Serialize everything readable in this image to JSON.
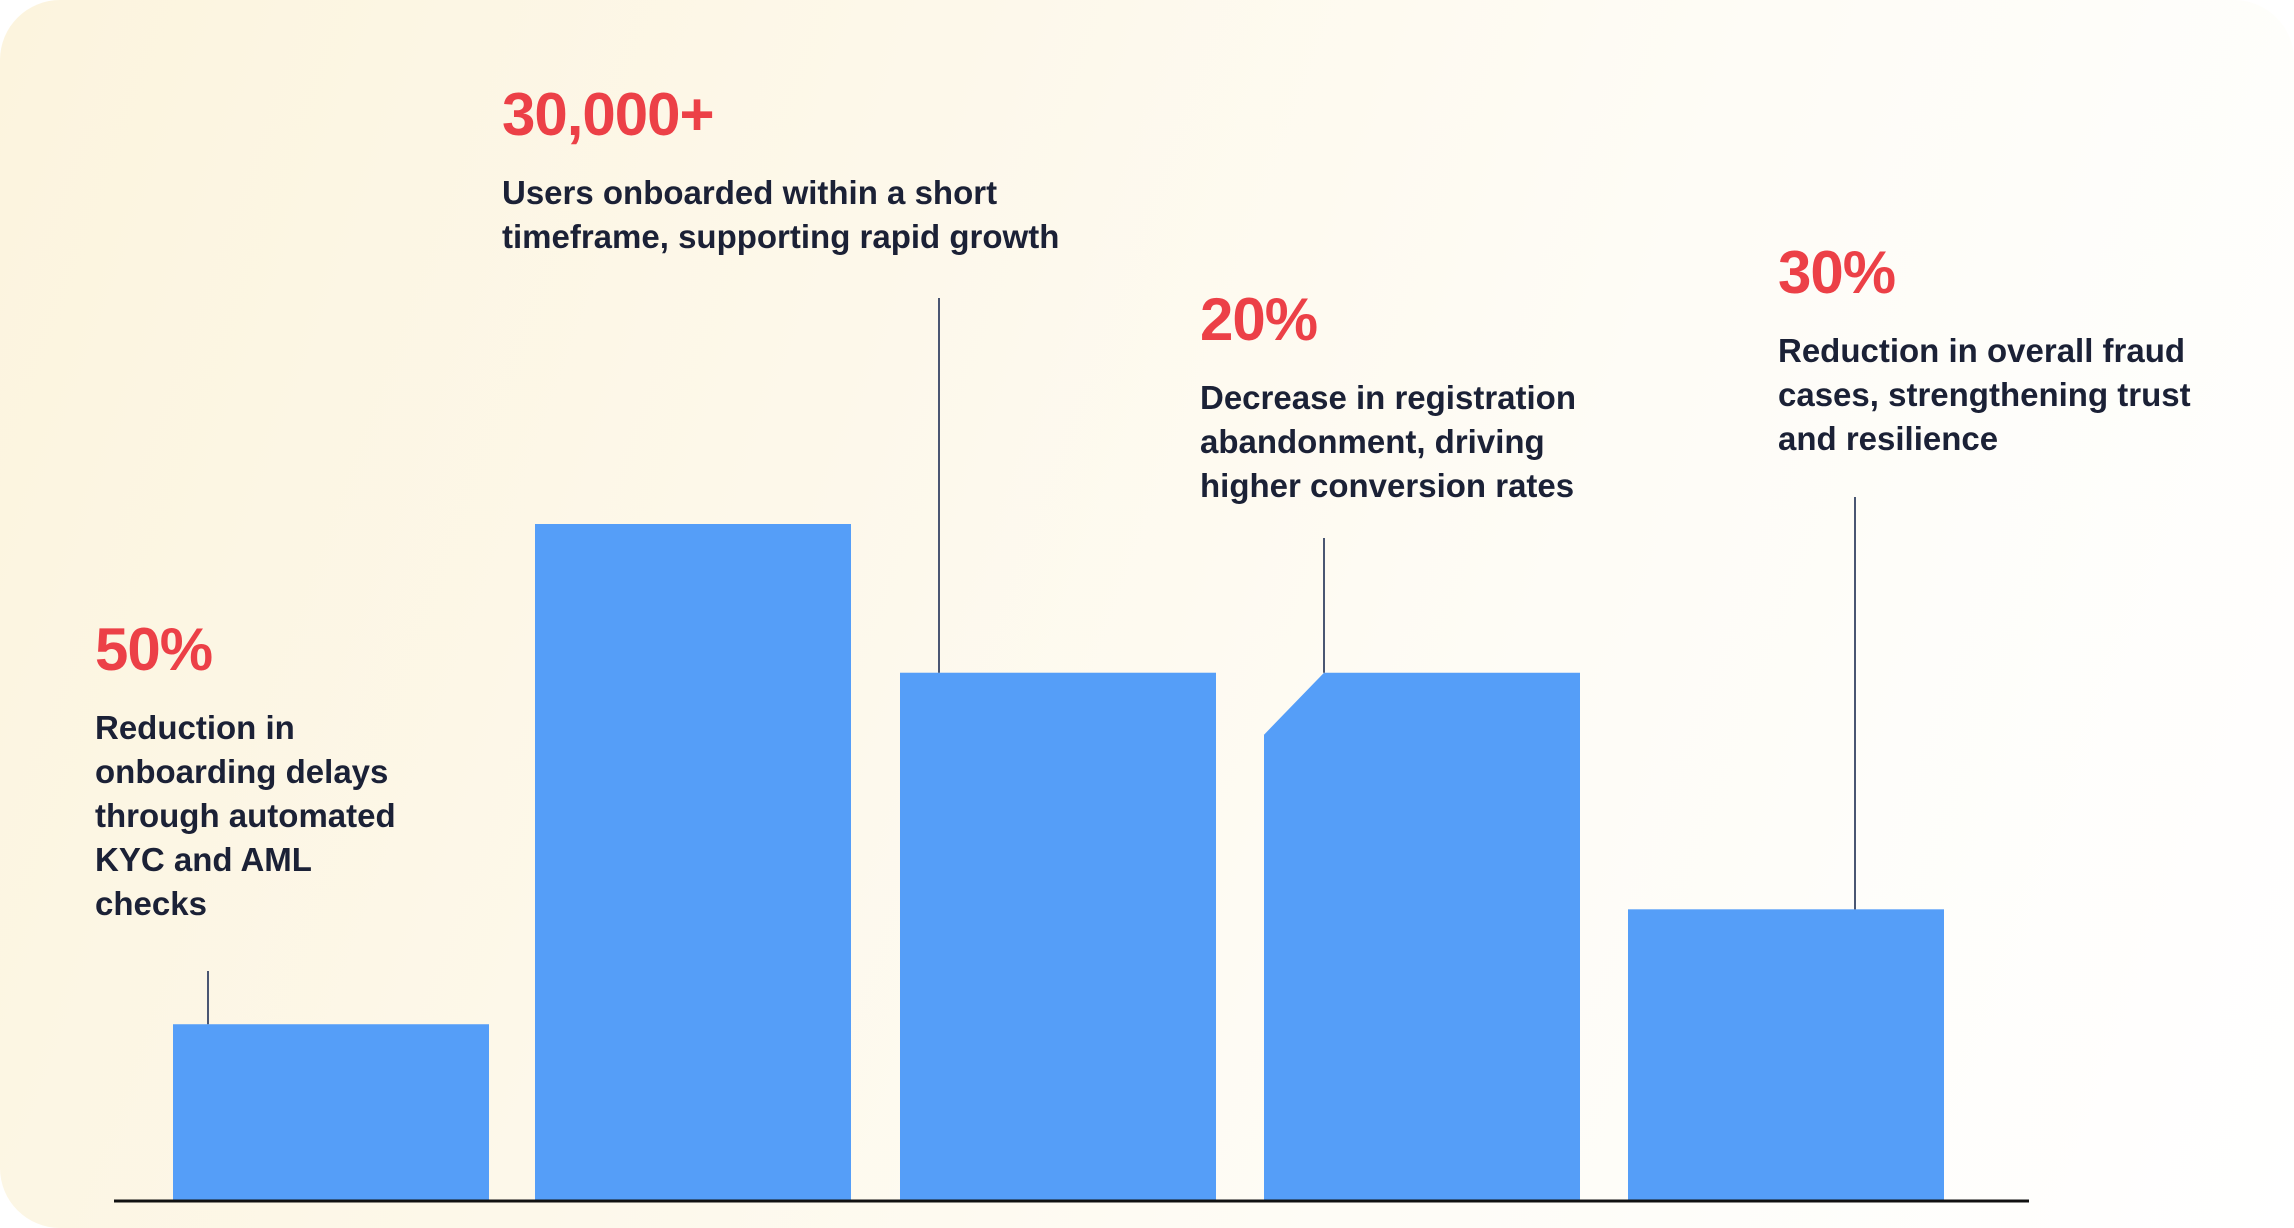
{
  "chart_data": {
    "type": "bar",
    "title": "",
    "xlabel": "",
    "ylabel": "",
    "grid": false,
    "legend": "none",
    "bar_color": "#559ef8",
    "highlight_color": "#ec4047",
    "text_color": "#1b2136",
    "relative_heights": [
      0.26,
      1.0,
      0.78,
      0.78,
      0.43
    ],
    "annotations": [
      {
        "value": "50%",
        "text": [
          "Reduction in",
          "onboarding delays",
          "through automated",
          "KYC and AML",
          "checks"
        ],
        "bar": 0
      },
      {
        "value": "30,000+",
        "text": [
          "Users onboarded within a short",
          "timeframe, supporting rapid growth"
        ],
        "bar": 2
      },
      {
        "value": "20%",
        "text": [
          "Decrease in registration",
          "abandonment, driving",
          "higher conversion rates"
        ],
        "bar": 3
      },
      {
        "value": "30%",
        "text": [
          "Reduction in overall fraud",
          "cases, strengthening trust",
          "and resilience"
        ],
        "bar": 4
      }
    ]
  }
}
